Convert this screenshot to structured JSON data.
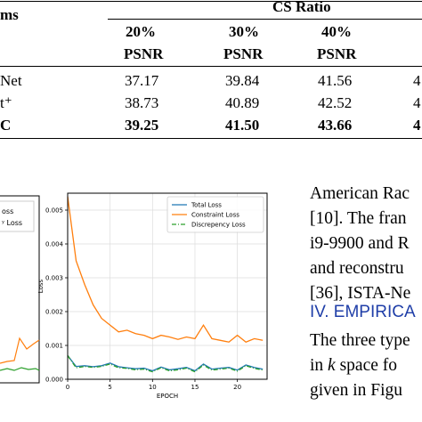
{
  "table": {
    "header_left": "ms",
    "group_header": "CS Ratio",
    "ratios": [
      "20%",
      "30%",
      "40%",
      ""
    ],
    "metric": "PSNR",
    "rows": [
      {
        "method": "Net",
        "values": [
          "37.17",
          "39.84",
          "41.56",
          "4"
        ],
        "bold": false
      },
      {
        "method": "t⁺",
        "values": [
          "38.73",
          "40.89",
          "42.52",
          "4"
        ],
        "bold": false
      },
      {
        "method": "C",
        "values": [
          "39.25",
          "41.50",
          "43.66",
          "4"
        ],
        "bold": true
      }
    ]
  },
  "left_chart_fragment": {
    "legend_partial": [
      "oss",
      "ʸ Loss"
    ]
  },
  "chart_data": {
    "type": "line",
    "xlabel": "EPOCH",
    "ylabel": "Loss",
    "xlim": [
      0,
      23.5
    ],
    "ylim": [
      0,
      0.0055
    ],
    "x_ticks": [
      "0",
      "5",
      "10",
      "15",
      "20"
    ],
    "y_ticks": [
      "0.000",
      "0.001",
      "0.002",
      "0.003",
      "0.004",
      "0.005"
    ],
    "legend_position": "top-right",
    "series": [
      {
        "name": "Total Loss",
        "color": "#1f77b4",
        "x": [
          0,
          1,
          2,
          3,
          4,
          5,
          6,
          7,
          8,
          9,
          10,
          11,
          12,
          13,
          14,
          15,
          16,
          17,
          18,
          19,
          20,
          21,
          22,
          23
        ],
        "y": [
          0.0007,
          0.00038,
          0.0004,
          0.00037,
          0.0004,
          0.00048,
          0.00037,
          0.00034,
          0.00031,
          0.00033,
          0.00025,
          0.00036,
          0.00028,
          0.00031,
          0.00035,
          0.00025,
          0.00045,
          0.0003,
          0.00033,
          0.00035,
          0.00027,
          0.00042,
          0.00035,
          0.0003
        ]
      },
      {
        "name": "Constraint Loss",
        "color": "#ff7f0e",
        "x": [
          0,
          1,
          2,
          3,
          4,
          5,
          6,
          7,
          8,
          9,
          10,
          11,
          12,
          13,
          14,
          15,
          16,
          17,
          18,
          19,
          20,
          21,
          22,
          23
        ],
        "y": [
          0.0054,
          0.0035,
          0.0028,
          0.0022,
          0.0018,
          0.0016,
          0.0014,
          0.00145,
          0.00135,
          0.0013,
          0.0012,
          0.0013,
          0.00125,
          0.00118,
          0.00125,
          0.0012,
          0.0016,
          0.0012,
          0.00115,
          0.0011,
          0.0013,
          0.0011,
          0.0012,
          0.00115
        ]
      },
      {
        "name": "Discrepency Loss",
        "color": "#2ca02c",
        "x": [
          0,
          1,
          2,
          3,
          4,
          5,
          6,
          7,
          8,
          9,
          10,
          11,
          12,
          13,
          14,
          15,
          16,
          17,
          18,
          19,
          20,
          21,
          22,
          23
        ],
        "y": [
          0.0007,
          0.00034,
          0.00038,
          0.00035,
          0.00038,
          0.00045,
          0.00034,
          0.00032,
          0.00028,
          0.0003,
          0.00022,
          0.00034,
          0.00025,
          0.00028,
          0.00033,
          0.00022,
          0.00042,
          0.00027,
          0.0003,
          0.00033,
          0.00024,
          0.0004,
          0.00032,
          0.00027
        ]
      }
    ]
  },
  "body_text": {
    "lines": [
      "American Rac",
      "[10]. The fran",
      "i9-9900 and R",
      "and reconstru",
      "[36], ISTA-Ne"
    ],
    "section_heading": "IV. EMPIRICA",
    "lines2_a": "The three type",
    "lines2_b_prefix": "in ",
    "lines2_b_k": "k",
    "lines2_b_suffix": " space fo",
    "lines2_c": "given in Figu"
  }
}
